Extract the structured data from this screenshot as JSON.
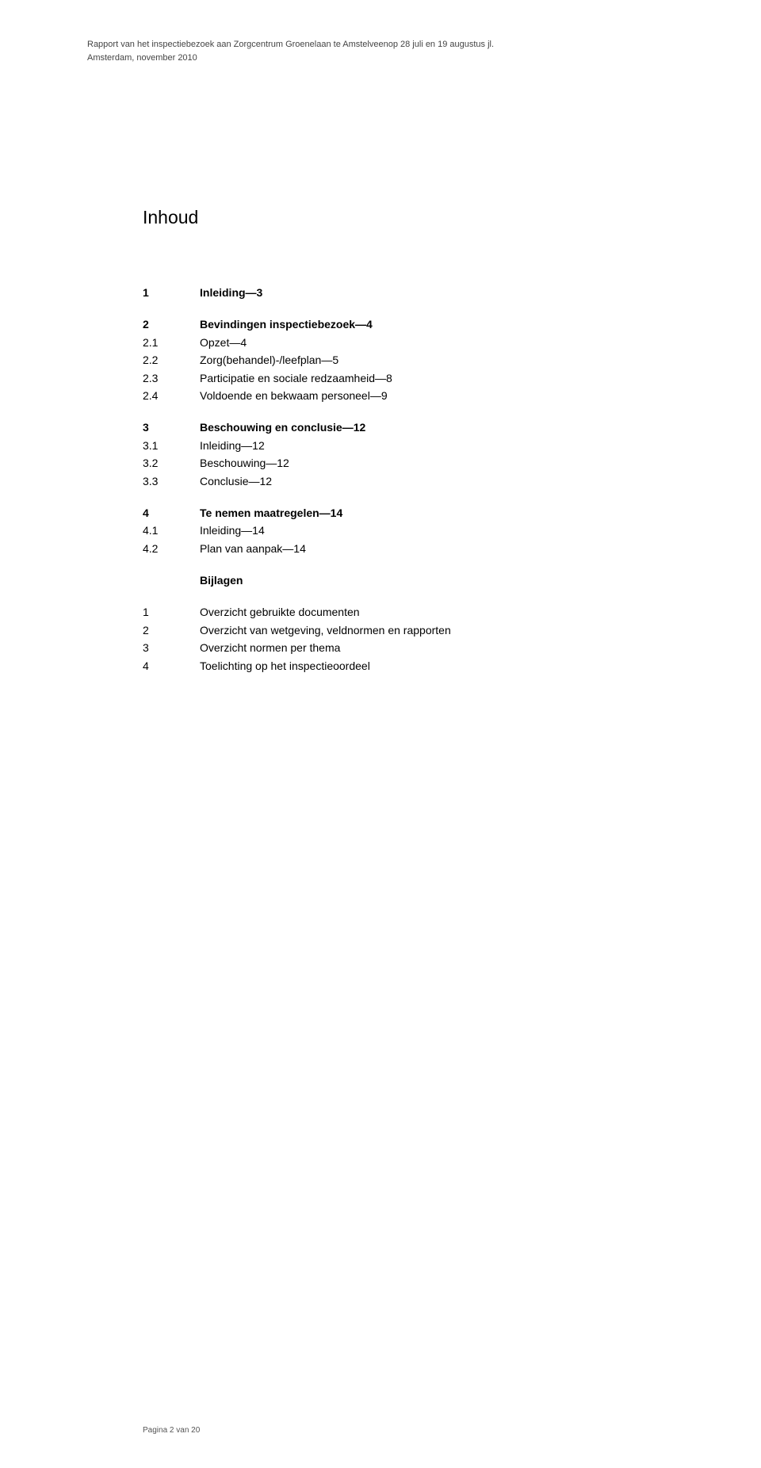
{
  "header": {
    "line1": "Rapport van het inspectiebezoek aan Zorgcentrum Groenelaan te Amstelveenop 28 juli en 19 augustus jl.",
    "line2": "Amsterdam, november 2010"
  },
  "title": "Inhoud",
  "toc": {
    "section1": {
      "num": "1",
      "text": "Inleiding—3"
    },
    "section2": {
      "heading_num": "2",
      "heading_text": "Bevindingen inspectiebezoek—4",
      "items": [
        {
          "num": "2.1",
          "text": "Opzet—4"
        },
        {
          "num": "2.2",
          "text": "Zorg(behandel)-/leefplan—5"
        },
        {
          "num": "2.3",
          "text": "Participatie en sociale redzaamheid—8"
        },
        {
          "num": "2.4",
          "text": "Voldoende en bekwaam personeel—9"
        }
      ]
    },
    "section3": {
      "heading_num": "3",
      "heading_text": "Beschouwing en conclusie—12",
      "items": [
        {
          "num": "3.1",
          "text": "Inleiding—12"
        },
        {
          "num": "3.2",
          "text": "Beschouwing—12"
        },
        {
          "num": "3.3",
          "text": "Conclusie—12"
        }
      ]
    },
    "section4": {
      "heading_num": "4",
      "heading_text": "Te nemen maatregelen—14",
      "items": [
        {
          "num": "4.1",
          "text": "Inleiding—14"
        },
        {
          "num": "4.2",
          "text": "Plan van aanpak—14"
        }
      ]
    },
    "bijlagen": {
      "title": "Bijlagen",
      "items": [
        {
          "num": "1",
          "text": "Overzicht gebruikte documenten"
        },
        {
          "num": "2",
          "text": "Overzicht van wetgeving, veldnormen en rapporten"
        },
        {
          "num": "3",
          "text": "Overzicht normen per thema"
        },
        {
          "num": "4",
          "text": "Toelichting op het inspectieoordeel"
        }
      ]
    }
  },
  "footer": "Pagina 2 van 20"
}
